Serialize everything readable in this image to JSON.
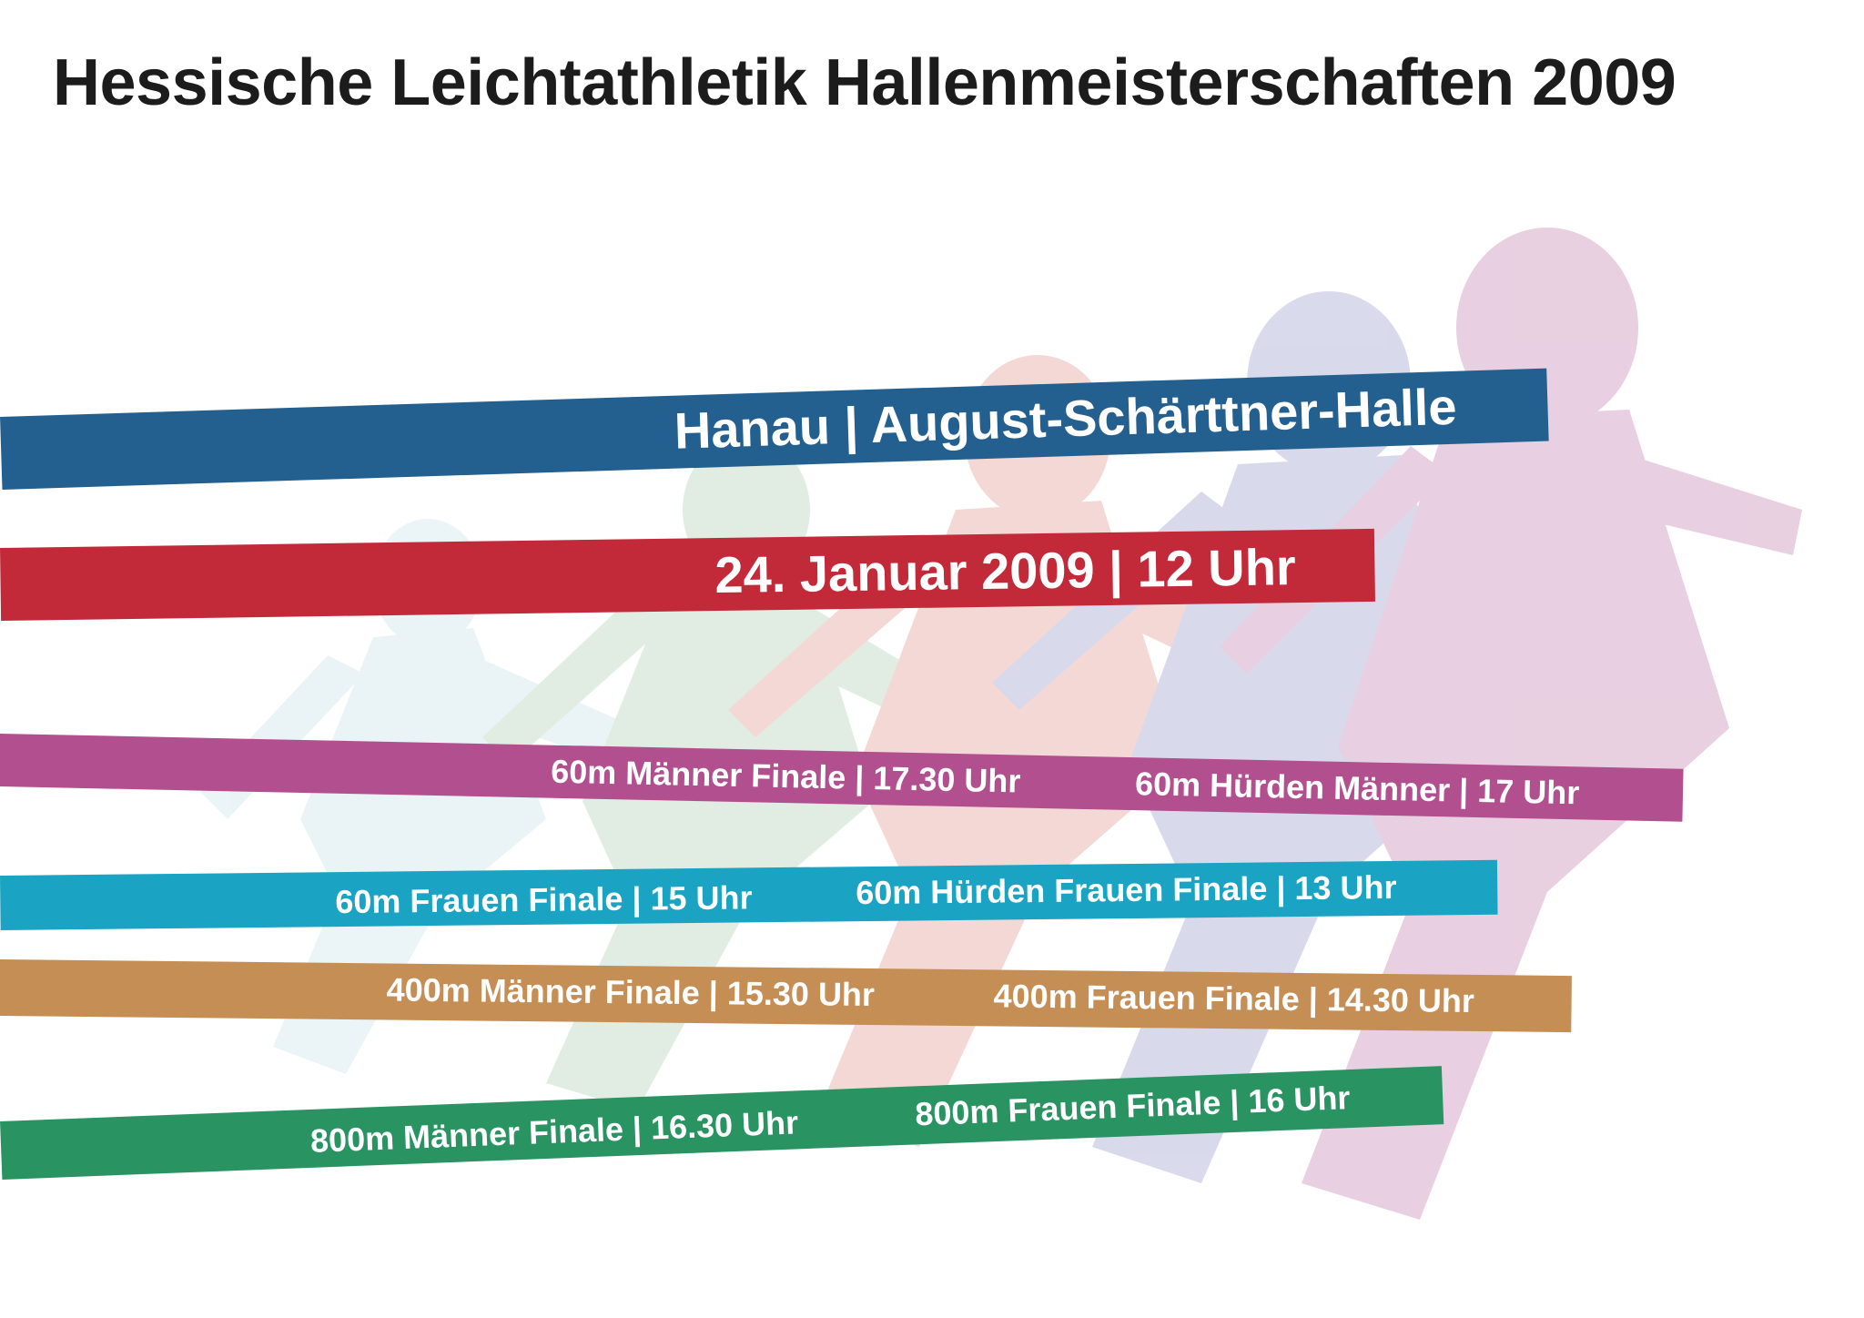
{
  "title": "Hessische Leichtathletik Hallenmeisterschaften 2009",
  "venue": "Hanau | August-Schärttner-Halle",
  "date_time": "24. Januar 2009 | 12 Uhr",
  "events": {
    "men_60m_final": "60m Männer Finale | 17.30 Uhr",
    "men_60m_hurdles": "60m Hürden Männer | 17 Uhr",
    "women_60m_final": "60m Frauen Finale | 15 Uhr",
    "women_60m_hurdles_final": "60m Hürden Frauen Finale | 13 Uhr",
    "men_400m_final": "400m Männer Finale | 15.30 Uhr",
    "women_400m_final": "400m Frauen Finale | 14.30 Uhr",
    "men_800m_final": "800m Männer Finale | 16.30 Uhr",
    "women_800m_final": "800m Frauen Finale | 16 Uhr"
  },
  "colors": {
    "venue_band": "#24608f",
    "date_band": "#c22a3a",
    "band_60m_men": "#b24f8f",
    "band_60m_women": "#1aa3c2",
    "band_400m": "#c58e55",
    "band_800m": "#2a9362",
    "runner_purple": "#c98fb8",
    "runner_blue": "#a7a6d3",
    "runner_red": "#e4a39e",
    "runner_green": "#b8d4bb",
    "runner_light": "#cfe4ec"
  }
}
